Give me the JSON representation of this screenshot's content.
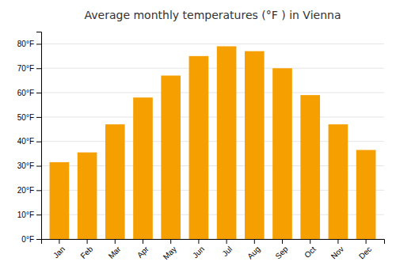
{
  "chart_data": {
    "type": "bar",
    "title": "Average monthly temperatures (°F ) in Vienna",
    "categories": [
      "Jan",
      "Feb",
      "Mar",
      "Apr",
      "May",
      "Jun",
      "Jul",
      "Aug",
      "Sep",
      "Oct",
      "Nov",
      "Dec"
    ],
    "values": [
      31.5,
      35.5,
      47,
      58,
      67,
      75,
      79,
      77,
      70,
      59,
      47,
      36.5
    ],
    "color": "#F5A000",
    "ylim": [
      0,
      85
    ],
    "yticks": [
      {
        "value": 0,
        "label": "0°F"
      },
      {
        "value": 10,
        "label": "10°F"
      },
      {
        "value": 20,
        "label": "20°F"
      },
      {
        "value": 30,
        "label": "30°F"
      },
      {
        "value": 40,
        "label": "40°F"
      },
      {
        "value": 50,
        "label": "50°F"
      },
      {
        "value": 60,
        "label": "60°F"
      },
      {
        "value": 70,
        "label": "70°F"
      },
      {
        "value": 80,
        "label": "80°F"
      }
    ],
    "grid": true
  }
}
